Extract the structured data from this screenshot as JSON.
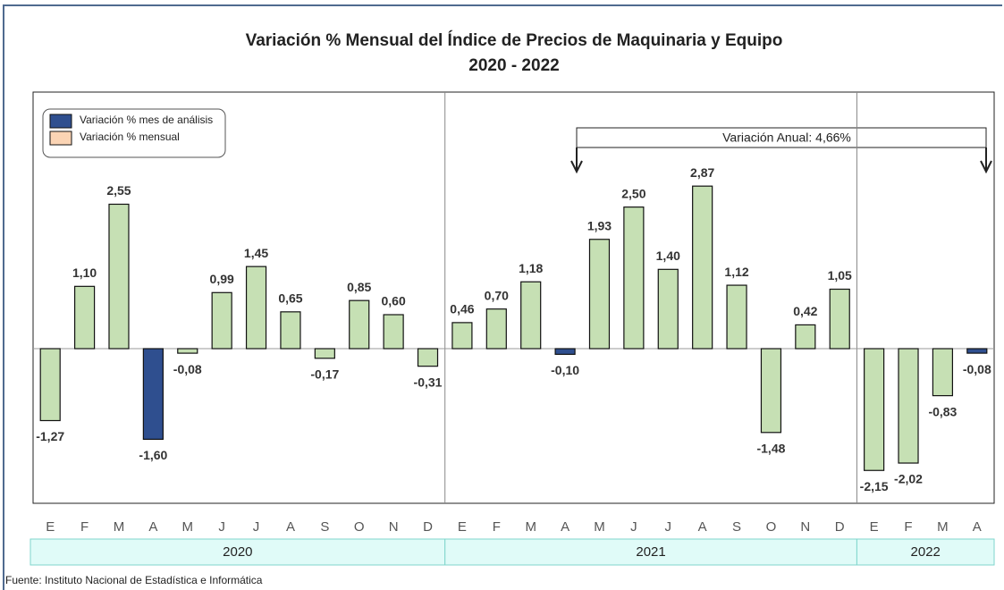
{
  "chart_data": {
    "type": "bar",
    "title": "Variación % Mensual del Índice de Precios de Maquinaria y Equipo",
    "subtitle": "2020 - 2022",
    "groups": [
      {
        "name": "2020",
        "categories": [
          "E",
          "F",
          "M",
          "A",
          "M",
          "J",
          "J",
          "A",
          "S",
          "O",
          "N",
          "D"
        ]
      },
      {
        "name": "2021",
        "categories": [
          "E",
          "F",
          "M",
          "A",
          "M",
          "J",
          "J",
          "A",
          "S",
          "O",
          "N",
          "D"
        ]
      },
      {
        "name": "2022",
        "categories": [
          "E",
          "F",
          "M",
          "A"
        ]
      }
    ],
    "series": [
      {
        "name": "Variación % mes de análisis",
        "color": "#2f4f8f",
        "values": [
          null,
          null,
          null,
          -1.6,
          null,
          null,
          null,
          null,
          null,
          null,
          null,
          null,
          null,
          null,
          null,
          -0.1,
          null,
          null,
          null,
          null,
          null,
          null,
          null,
          null,
          null,
          null,
          null,
          -0.08
        ],
        "value_labels": [
          null,
          null,
          null,
          "-1,60",
          null,
          null,
          null,
          null,
          null,
          null,
          null,
          null,
          null,
          null,
          null,
          "-0,10",
          null,
          null,
          null,
          null,
          null,
          null,
          null,
          null,
          null,
          null,
          null,
          "-0,08"
        ]
      },
      {
        "name": "Variación % mensual",
        "color": "#c6e0b4",
        "legend_color": "#fbd4b4",
        "values": [
          -1.27,
          1.1,
          2.55,
          null,
          -0.08,
          0.99,
          1.45,
          0.65,
          -0.17,
          0.85,
          0.6,
          -0.31,
          0.46,
          0.7,
          1.18,
          null,
          1.93,
          2.5,
          1.4,
          2.87,
          1.12,
          -1.48,
          0.42,
          1.05,
          -2.15,
          -2.02,
          -0.83,
          null
        ],
        "value_labels": [
          "-1,27",
          "1,10",
          "2,55",
          null,
          "-0,08",
          "0,99",
          "1,45",
          "0,65",
          "-0,17",
          "0,85",
          "0,60",
          "-0,31",
          "0,46",
          "0,70",
          "1,18",
          null,
          "1,93",
          "2,50",
          "1,40",
          "2,87",
          "1,12",
          "-1,48",
          "0,42",
          "1,05",
          "-2,15",
          "-2,02",
          "-0,83",
          null
        ]
      }
    ],
    "ylim": [
      -2.73,
      4.53
    ],
    "annotation": "Variación Anual: 4,66%",
    "source": "Fuente: Instituto Nacional de Estadística e Informática"
  }
}
